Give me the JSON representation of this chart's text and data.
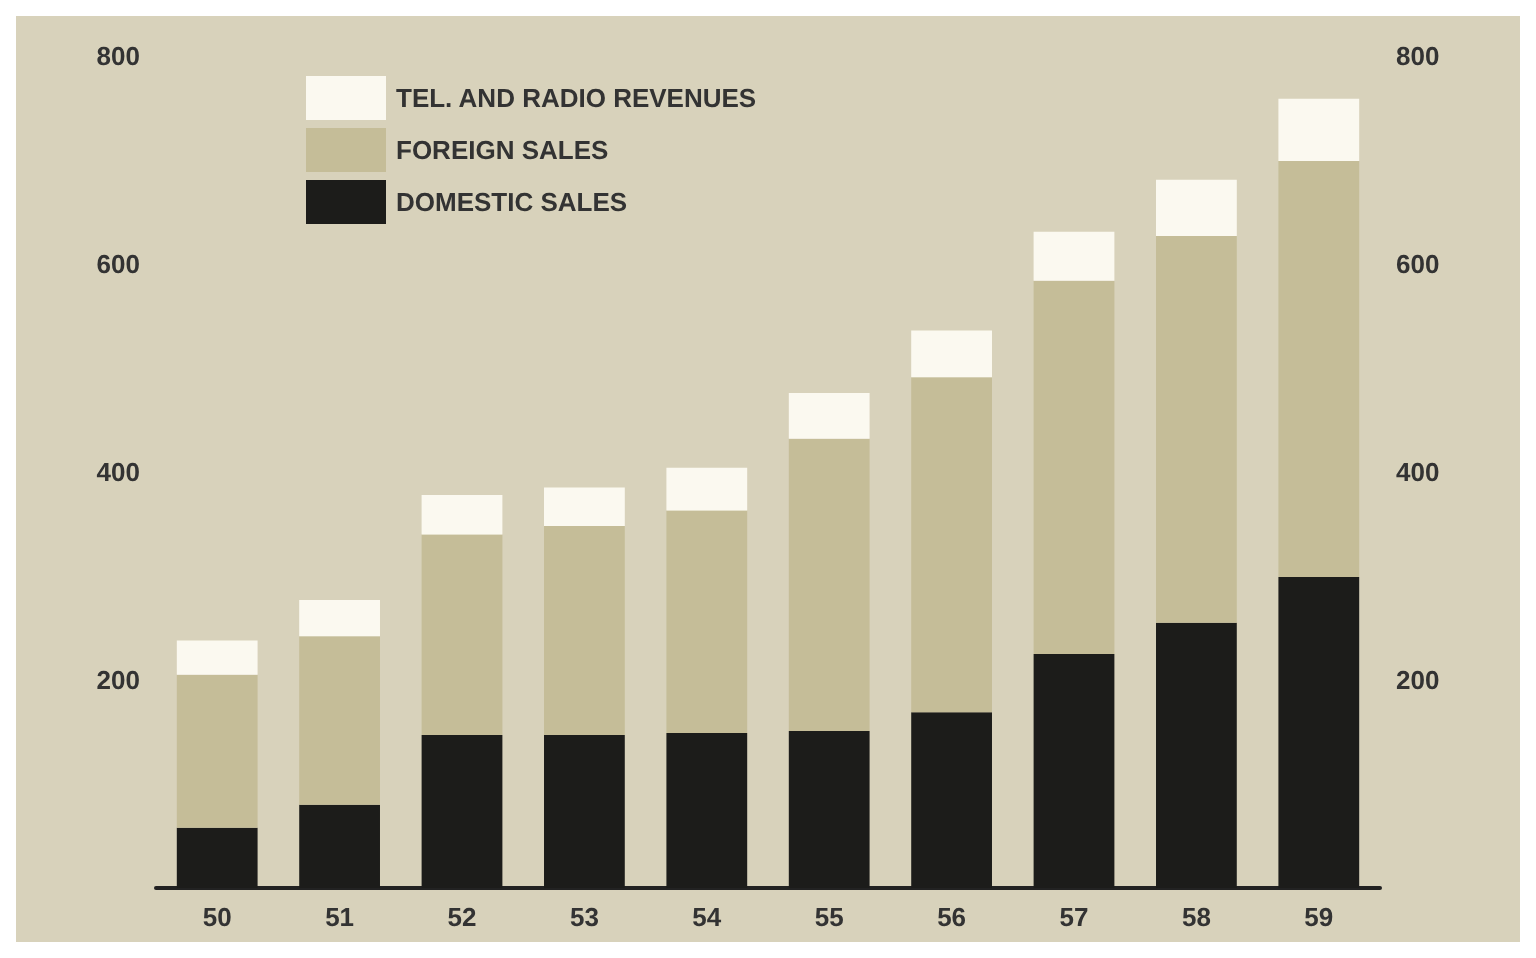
{
  "chart_data": {
    "type": "bar",
    "stacked": true,
    "categories": [
      "50",
      "51",
      "52",
      "53",
      "54",
      "55",
      "56",
      "57",
      "58",
      "59"
    ],
    "series": [
      {
        "name": "DOMESTIC SALES",
        "color": "#1c1c1a",
        "values": [
          58,
          80,
          147,
          147,
          149,
          151,
          169,
          225,
          255,
          299
        ]
      },
      {
        "name": "FOREIGN SALES",
        "color": "#c5bd98",
        "values": [
          147,
          162,
          193,
          201,
          214,
          281,
          322,
          359,
          372,
          400
        ]
      },
      {
        "name": "TEL. AND RADIO REVENUES",
        "color": "#fbf9f0",
        "values": [
          33,
          35,
          38,
          37,
          41,
          44,
          45,
          47,
          54,
          60
        ]
      }
    ],
    "ylim": [
      0,
      800
    ],
    "yticks": [
      200,
      400,
      600,
      800
    ],
    "y2lim": [
      0,
      800
    ],
    "y2ticks": [
      200,
      400,
      600,
      800
    ],
    "grid": false,
    "legend": "top left"
  }
}
